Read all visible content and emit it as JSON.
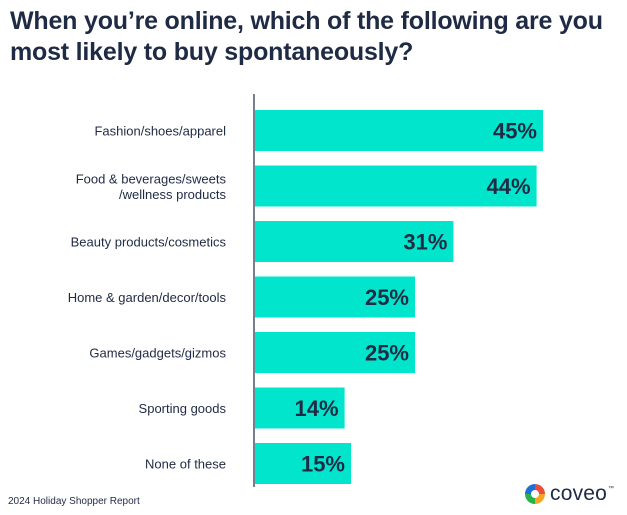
{
  "title": "When you’re online, which of the following are you\nmost likely to buy spontaneously?",
  "footer": "2024 Holiday Shopper Report",
  "brand": {
    "name": "coveo",
    "tm": "™"
  },
  "colors": {
    "bar": "#00e5cc",
    "text": "#1f2a44",
    "axis": "#1f2a44"
  },
  "chart_data": {
    "type": "bar",
    "orientation": "horizontal",
    "categories": [
      [
        "Fashion/shoes/apparel"
      ],
      [
        "Food & beverages/sweets",
        "/wellness products"
      ],
      [
        "Beauty products/cosmetics"
      ],
      [
        "Home & garden/decor/tools"
      ],
      [
        "Games/gadgets/gizmos"
      ],
      [
        "Sporting goods"
      ],
      [
        "None of these"
      ]
    ],
    "values": [
      45,
      44,
      31,
      25,
      25,
      14,
      15
    ],
    "value_labels": [
      "45%",
      "44%",
      "31%",
      "25%",
      "25%",
      "14%",
      "15%"
    ],
    "unit": "%",
    "xlim": [
      0,
      45
    ]
  }
}
